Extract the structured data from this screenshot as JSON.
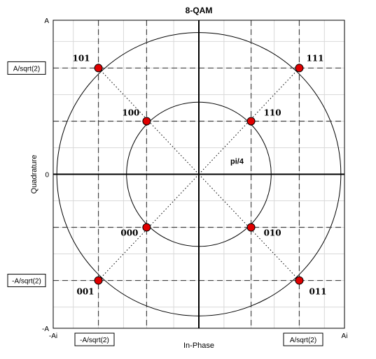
{
  "chart_data": {
    "type": "scatter",
    "title": "8-QAM",
    "xlabel": "In-Phase",
    "ylabel": "Quadrature",
    "xlim": [
      -1.45,
      1.45
    ],
    "ylim": [
      -1.45,
      1.45
    ],
    "grid": true,
    "x_ticks": [
      {
        "value": -1.45,
        "label": "-Ai"
      },
      {
        "value": 1.45,
        "label": "Ai"
      }
    ],
    "y_ticks": [
      {
        "value": 1.45,
        "label": "A"
      },
      {
        "value": 0,
        "label": "0"
      },
      {
        "value": -1.45,
        "label": "-A"
      }
    ],
    "points": [
      {
        "x": -1.0,
        "y": 1.0,
        "label": "101"
      },
      {
        "x": 1.0,
        "y": 1.0,
        "label": "111"
      },
      {
        "x": -0.52,
        "y": 0.5,
        "label": "100"
      },
      {
        "x": 0.52,
        "y": 0.5,
        "label": "110"
      },
      {
        "x": -0.52,
        "y": -0.5,
        "label": "000"
      },
      {
        "x": 0.52,
        "y": -0.5,
        "label": "010"
      },
      {
        "x": -1.0,
        "y": -1.0,
        "label": "001"
      },
      {
        "x": 1.0,
        "y": -1.0,
        "label": "011"
      }
    ],
    "circles": [
      {
        "radius": 1.414
      },
      {
        "radius": 0.72
      }
    ],
    "dashed_levels_x": [
      -1.0,
      -0.52,
      0.52,
      1.0
    ],
    "dashed_levels_y": [
      1.0,
      0.5,
      -0.5,
      -1.0
    ],
    "annotations": [
      {
        "text": "pi/4",
        "x": 0.38,
        "y": 0.1
      }
    ],
    "boxed_labels": {
      "y_top": "A/sqrt(2)",
      "y_bottom": "-A/sqrt(2)",
      "x_left": "-A/sqrt(2)",
      "x_right": "A/sqrt(2)"
    },
    "marker_color": "#e00000"
  }
}
